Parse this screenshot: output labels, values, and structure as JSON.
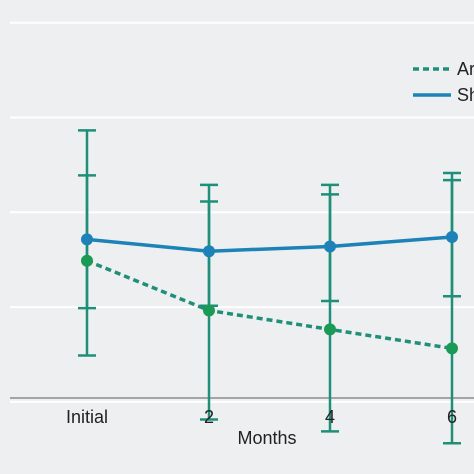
{
  "chart_data": {
    "type": "line",
    "title": "",
    "xlabel": "Months",
    "ylabel": "",
    "categories": [
      "Initial",
      "2",
      "4",
      "6"
    ],
    "grid": "horizontal",
    "legend_position": "top-right",
    "series": [
      {
        "name": "Ar",
        "style": "dashed",
        "color": "#1f8f7a",
        "marker_color": "#1a9a55",
        "values": [
          5.0,
          3.95,
          3.55,
          3.15
        ],
        "error_low": [
          3.0,
          1.65,
          1.4,
          1.15
        ],
        "error_high": [
          7.75,
          6.25,
          6.4,
          6.7
        ]
      },
      {
        "name": "Sh",
        "style": "solid",
        "color": "#1c82b8",
        "marker_color": "#1c82b8",
        "values": [
          5.45,
          5.2,
          5.3,
          5.5
        ],
        "error_low": [
          4.0,
          4.05,
          4.15,
          4.25
        ],
        "error_high": [
          6.8,
          6.6,
          6.6,
          6.85
        ]
      }
    ],
    "ylim": [
      0.5,
      10.5
    ],
    "axis_color": "#8c8c8c",
    "gridline_color": "#ffffff",
    "errorbar_color": "#1f8f7a"
  }
}
